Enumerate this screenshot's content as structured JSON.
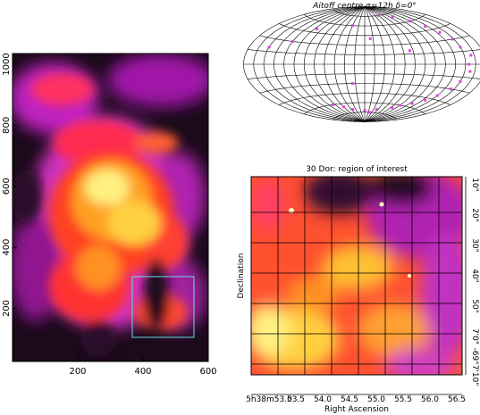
{
  "chart_data": [
    {
      "type": "image",
      "xlim": [
        0,
        600
      ],
      "ylim": [
        26,
        1035
      ],
      "xticks": [
        200,
        400,
        600
      ],
      "yticks": [
        200,
        400,
        600,
        800,
        1000
      ],
      "region": {
        "x": [
          367,
          556
        ],
        "y": [
          105,
          304
        ],
        "color": "#5ee0e0"
      }
    },
    {
      "type": "aitoff",
      "title": "Aitoff centre α=12h δ=0°",
      "color": "#e040e0",
      "points": [
        [
          120,
          60
        ],
        [
          140,
          40
        ],
        [
          150,
          20
        ],
        [
          155,
          0
        ],
        [
          150,
          -20
        ],
        [
          135,
          -40
        ],
        [
          110,
          -55
        ],
        [
          80,
          -65
        ],
        [
          40,
          -70
        ],
        [
          0,
          -72
        ],
        [
          -40,
          -70
        ],
        [
          -80,
          -60
        ],
        [
          100,
          70
        ],
        [
          60,
          75
        ],
        [
          130,
          50
        ],
        [
          145,
          -30
        ],
        [
          160,
          10
        ],
        [
          90,
          -60
        ],
        [
          20,
          -75
        ],
        [
          -60,
          -65
        ],
        [
          -120,
          30
        ],
        [
          -100,
          50
        ],
        [
          -150,
          20
        ],
        [
          -30,
          60
        ],
        [
          10,
          40
        ],
        [
          70,
          20
        ],
        [
          -20,
          -30
        ],
        [
          125,
          -48
        ],
        [
          148,
          30
        ],
        [
          158,
          -8
        ]
      ]
    },
    {
      "type": "image",
      "title": "30 Dor: region of interest",
      "x_label": "Right Ascension",
      "y_label": "Declination",
      "xticks": [
        "5h38m53.0",
        "53.5",
        "54.0",
        "54.5",
        "55.0",
        "55.5",
        "56.0",
        "56.5"
      ],
      "yticks": [
        "10\"",
        "20\"",
        "30\"",
        "40\"",
        "50\"",
        "7'0\"",
        "-69°7'10\""
      ]
    }
  ]
}
